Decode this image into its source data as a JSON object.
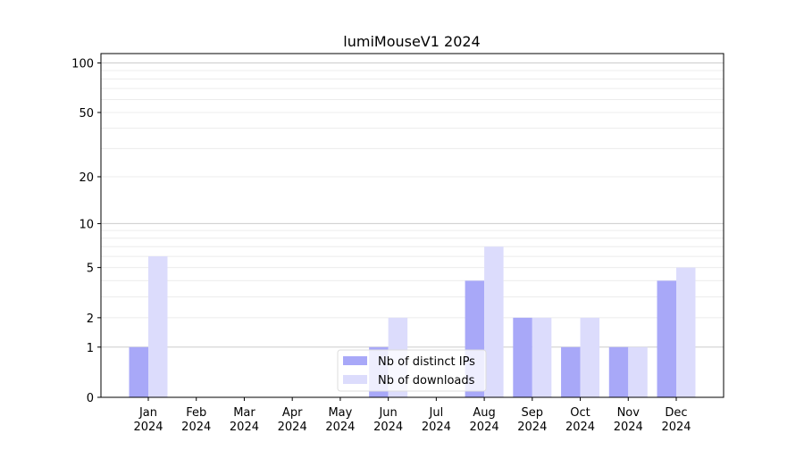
{
  "chart_data": {
    "type": "bar",
    "title": "lumiMouseV1 2024",
    "xlabel": "",
    "ylabel": "",
    "yscale": "log(1+y)",
    "ylim": [
      0,
      114
    ],
    "yticks": [
      0,
      1,
      2,
      5,
      10,
      20,
      50,
      100
    ],
    "grid": true,
    "legend_position": "bottom-center",
    "categories": [
      "Jan\n2024",
      "Feb\n2024",
      "Mar\n2024",
      "Apr\n2024",
      "May\n2024",
      "Jun\n2024",
      "Jul\n2024",
      "Aug\n2024",
      "Sep\n2024",
      "Oct\n2024",
      "Nov\n2024",
      "Dec\n2024"
    ],
    "series": [
      {
        "name": "Nb of distinct IPs",
        "color": "#a8a8f8",
        "values": [
          1,
          0,
          0,
          0,
          0,
          1,
          0,
          4,
          2,
          1,
          1,
          4
        ]
      },
      {
        "name": "Nb of downloads",
        "color": "#dcdcfc",
        "values": [
          6,
          0,
          0,
          0,
          0,
          2,
          0,
          7,
          2,
          2,
          1,
          5
        ]
      }
    ]
  }
}
